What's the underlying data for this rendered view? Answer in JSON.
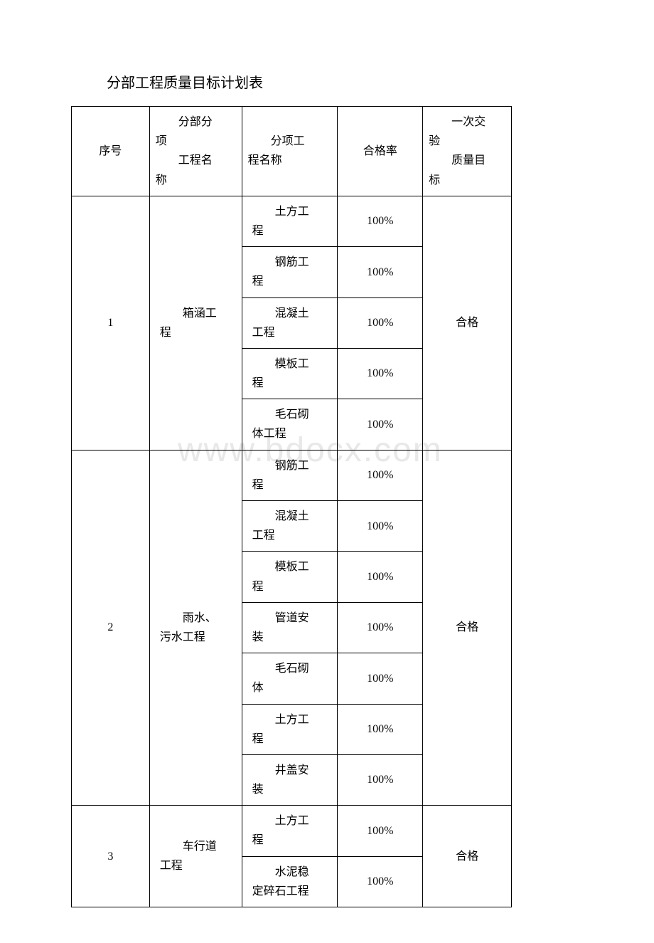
{
  "title": "分部工程质量目标计划表",
  "watermark": "www.bdocx.com",
  "headers": {
    "seq": "序号",
    "section_l1": "分部分",
    "section_l2": "项",
    "section_l3": "工程名",
    "section_l4": "称",
    "item_l1": "分项工",
    "item_l2": "程名称",
    "rate": "合格率",
    "target_l1": "一次交",
    "target_l2": "验",
    "target_l3": "质量目",
    "target_l4": "标"
  },
  "groups": [
    {
      "seq": "1",
      "section_l1": "箱涵工",
      "section_l2": "程",
      "target": "合格",
      "items": [
        {
          "name_l1": "土方工",
          "name_l2": "程",
          "rate": "100%"
        },
        {
          "name_l1": "钢筋工",
          "name_l2": "程",
          "rate": "100%"
        },
        {
          "name_l1": "混凝土",
          "name_l2": "工程",
          "rate": "100%"
        },
        {
          "name_l1": "模板工",
          "name_l2": "程",
          "rate": "100%"
        },
        {
          "name_l1": "毛石砌",
          "name_l2": "体工程",
          "rate": "100%"
        }
      ]
    },
    {
      "seq": "2",
      "section_l1": "雨水、",
      "section_l2": "污水工程",
      "target": "合格",
      "items": [
        {
          "name_l1": "钢筋工",
          "name_l2": "程",
          "rate": "100%"
        },
        {
          "name_l1": "混凝土",
          "name_l2": "工程",
          "rate": "100%"
        },
        {
          "name_l1": "模板工",
          "name_l2": "程",
          "rate": "100%"
        },
        {
          "name_l1": "管道安",
          "name_l2": "装",
          "rate": "100%"
        },
        {
          "name_l1": "毛石砌",
          "name_l2": "体",
          "rate": "100%"
        },
        {
          "name_l1": "土方工",
          "name_l2": "程",
          "rate": "100%"
        },
        {
          "name_l1": "井盖安",
          "name_l2": "装",
          "rate": "100%"
        }
      ]
    },
    {
      "seq": "3",
      "section_l1": "车行道",
      "section_l2": "工程",
      "target": "合格",
      "items": [
        {
          "name_l1": "土方工",
          "name_l2": "程",
          "rate": "100%"
        },
        {
          "name_l1": "水泥稳",
          "name_l2": "定碎石工程",
          "rate": "100%"
        }
      ]
    }
  ]
}
